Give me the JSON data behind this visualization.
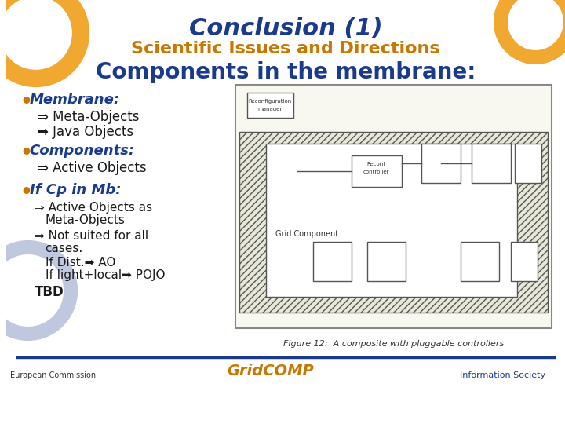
{
  "title": "Conclusion (1)",
  "subtitle": "Scientific Issues and Directions",
  "section_title": "Components in the membrane:",
  "title_color": "#1a3a8c",
  "subtitle_color": "#c87800",
  "section_title_color": "#1a3a8c",
  "bg_color": "#ffffff",
  "bullet_color": "#c87800",
  "bullet_text_color": "#1a3a8c",
  "body_text_color": "#1a1a1a",
  "arrow_color": "#1a1a1a",
  "circle_left_color": "#f0a830",
  "circle_right_color": "#f0a830",
  "circle_bottom_left_color": "#c0c8e0",
  "footer_line_color": "#1a3a8c",
  "bullets": [
    {
      "text": "Membrane:",
      "sub": [
        {
          "arrow": "⇒",
          "text": "Meta-Objects"
        },
        {
          "arrow": "➡",
          "text": "Java Objects"
        }
      ]
    },
    {
      "text": "Components:",
      "sub": [
        {
          "arrow": "⇒",
          "text": "Active Objects"
        }
      ]
    },
    {
      "text": "If Cp in Mb:",
      "sub": []
    }
  ],
  "extra_text": [
    "⇒ Active Objects as\n   Meta-Objects",
    "⇒ Not suited for all\n   cases.",
    "   If Dist.➡ AO",
    "   If light+local➡ POJO",
    "TBD"
  ],
  "figure_caption": "Figure 12:  A composite with pluggable controllers",
  "footer_left": "European Commission",
  "footer_center": "GridCOMP",
  "footer_right": "Information Society"
}
